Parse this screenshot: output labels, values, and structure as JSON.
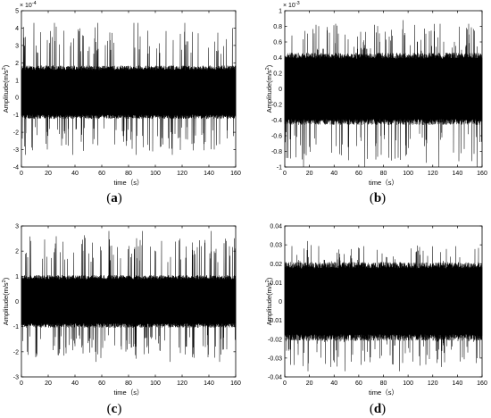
{
  "chart_data": [
    {
      "type": "line",
      "caption_letter": "a",
      "xlabel": "time（s）",
      "ylabel": "Amplitude(m/s",
      "ylabel_sup": "2",
      "ylabel_close": ")",
      "xlim": [
        0,
        160
      ],
      "ylim": [
        -4,
        5
      ],
      "xticks": [
        "0",
        "20",
        "40",
        "60",
        "80",
        "100",
        "120",
        "140",
        "160"
      ],
      "yticks": [
        "-4",
        "-3",
        "-2",
        "-1",
        "0",
        "1",
        "2",
        "3",
        "4",
        "5"
      ],
      "exponent": "× 10",
      "exponent_power": "-4",
      "signal": {
        "mean": 0.25,
        "bulk_lower": -1.1,
        "bulk_upper": 1.7,
        "peak_min": -3.3,
        "peak_max": 4.3
      }
    },
    {
      "type": "line",
      "caption_letter": "b",
      "xlabel": "time（s）",
      "ylabel": "Amplitude(m/s",
      "ylabel_sup": "2",
      "ylabel_close": ")",
      "xlim": [
        0,
        160
      ],
      "ylim": [
        -1,
        1
      ],
      "xticks": [
        "0",
        "20",
        "40",
        "60",
        "80",
        "100",
        "120",
        "140",
        "160"
      ],
      "yticks": [
        "-1",
        "-0.8",
        "-0.6",
        "-0.4",
        "-0.2",
        "0",
        "0.2",
        "0.4",
        "0.6",
        "0.8",
        "1"
      ],
      "exponent": "× 10",
      "exponent_power": "-3",
      "signal": {
        "mean": 0.0,
        "bulk_lower": -0.42,
        "bulk_upper": 0.42,
        "peak_min": -1.0,
        "peak_max": 0.88
      }
    },
    {
      "type": "line",
      "caption_letter": "c",
      "xlabel": "time（s）",
      "ylabel": "Amplitude(m/s",
      "ylabel_sup": "2",
      "ylabel_close": ")",
      "xlim": [
        0,
        160
      ],
      "ylim": [
        -3,
        3
      ],
      "xticks": [
        "0",
        "20",
        "40",
        "60",
        "80",
        "100",
        "120",
        "140",
        "160"
      ],
      "yticks": [
        "-3",
        "-2",
        "-1",
        "0",
        "1",
        "2",
        "3"
      ],
      "exponent": "",
      "exponent_power": "",
      "signal": {
        "mean": 0.0,
        "bulk_lower": -0.95,
        "bulk_upper": 0.95,
        "peak_min": -2.4,
        "peak_max": 2.8
      }
    },
    {
      "type": "line",
      "caption_letter": "d",
      "xlabel": "time（s）",
      "ylabel": "Amplitude(m/s",
      "ylabel_sup": "2",
      "ylabel_close": ")",
      "xlim": [
        0,
        160
      ],
      "ylim": [
        -0.04,
        0.04
      ],
      "xticks": [
        "0",
        "20",
        "40",
        "60",
        "80",
        "100",
        "120",
        "140",
        "160"
      ],
      "yticks": [
        "-0.04",
        "-0.03",
        "-0.02",
        "-0.01",
        "0",
        "0.01",
        "0.02",
        "0.03",
        "0.04"
      ],
      "exponent": "",
      "exponent_power": "",
      "signal": {
        "mean": 0.0,
        "bulk_lower": -0.019,
        "bulk_upper": 0.019,
        "peak_min": -0.037,
        "peak_max": 0.032
      }
    }
  ]
}
